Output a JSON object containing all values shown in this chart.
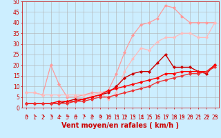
{
  "title": "",
  "xlabel": "Vent moyen/en rafales ( km/h )",
  "ylabel": "",
  "bg_color": "#cceeff",
  "grid_color": "#b0b0b0",
  "xlim": [
    -0.5,
    23.5
  ],
  "ylim": [
    0,
    50
  ],
  "xticks": [
    0,
    1,
    2,
    3,
    4,
    5,
    6,
    7,
    8,
    9,
    10,
    11,
    12,
    13,
    14,
    15,
    16,
    17,
    18,
    19,
    20,
    21,
    22,
    23
  ],
  "yticks": [
    0,
    5,
    10,
    15,
    20,
    25,
    30,
    35,
    40,
    45,
    50
  ],
  "series": [
    {
      "x": [
        0,
        1,
        2,
        3,
        4,
        5,
        6,
        7,
        8,
        9,
        10,
        11,
        12,
        13,
        14,
        15,
        16,
        17,
        18,
        19,
        20,
        21,
        22,
        23
      ],
      "y": [
        7,
        7,
        6,
        20,
        11,
        5,
        5,
        6,
        7,
        7,
        8,
        16,
        26,
        34,
        39,
        40,
        42,
        48,
        47,
        43,
        40,
        40,
        40,
        40
      ],
      "color": "#ff9999",
      "marker": "D",
      "ms": 2.0,
      "lw": 0.9
    },
    {
      "x": [
        0,
        1,
        2,
        3,
        4,
        5,
        6,
        7,
        8,
        9,
        10,
        11,
        12,
        13,
        14,
        15,
        16,
        17,
        18,
        19,
        20,
        21,
        22,
        23
      ],
      "y": [
        7,
        7,
        6,
        6,
        6,
        6,
        6,
        6,
        6,
        7,
        4,
        7,
        17,
        23,
        28,
        27,
        31,
        33,
        33,
        35,
        35,
        33,
        33,
        40
      ],
      "color": "#ffbbbb",
      "marker": "D",
      "ms": 2.0,
      "lw": 0.9
    },
    {
      "x": [
        0,
        1,
        2,
        3,
        4,
        5,
        6,
        7,
        8,
        9,
        10,
        11,
        12,
        13,
        14,
        15,
        16,
        17,
        18,
        19,
        20,
        21,
        22,
        23
      ],
      "y": [
        2,
        2,
        2,
        2,
        2,
        3,
        4,
        4,
        5,
        6,
        7,
        10,
        14,
        16,
        17,
        17,
        21,
        25,
        19,
        19,
        19,
        17,
        16,
        20
      ],
      "color": "#cc0000",
      "marker": "D",
      "ms": 2.0,
      "lw": 1.0
    },
    {
      "x": [
        0,
        1,
        2,
        3,
        4,
        5,
        6,
        7,
        8,
        9,
        10,
        11,
        12,
        13,
        14,
        15,
        16,
        17,
        18,
        19,
        20,
        21,
        22,
        23
      ],
      "y": [
        2,
        2,
        2,
        2,
        3,
        3,
        3,
        4,
        5,
        6,
        8,
        9,
        10,
        11,
        12,
        13,
        14,
        16,
        16,
        17,
        17,
        17,
        17,
        20
      ],
      "color": "#ff0000",
      "marker": "D",
      "ms": 2.0,
      "lw": 1.0
    },
    {
      "x": [
        0,
        1,
        2,
        3,
        4,
        5,
        6,
        7,
        8,
        9,
        10,
        11,
        12,
        13,
        14,
        15,
        16,
        17,
        18,
        19,
        20,
        21,
        22,
        23
      ],
      "y": [
        2,
        2,
        2,
        2,
        2,
        2,
        3,
        3,
        4,
        5,
        5,
        6,
        7,
        8,
        9,
        10,
        12,
        13,
        14,
        15,
        16,
        16,
        17,
        19
      ],
      "color": "#ee3333",
      "marker": "D",
      "ms": 2.0,
      "lw": 1.0
    }
  ],
  "arrow_color": "#cc0000",
  "xlabel_color": "#cc0000",
  "xlabel_fontsize": 7,
  "tick_color": "#cc0000",
  "tick_fontsize": 5.5
}
